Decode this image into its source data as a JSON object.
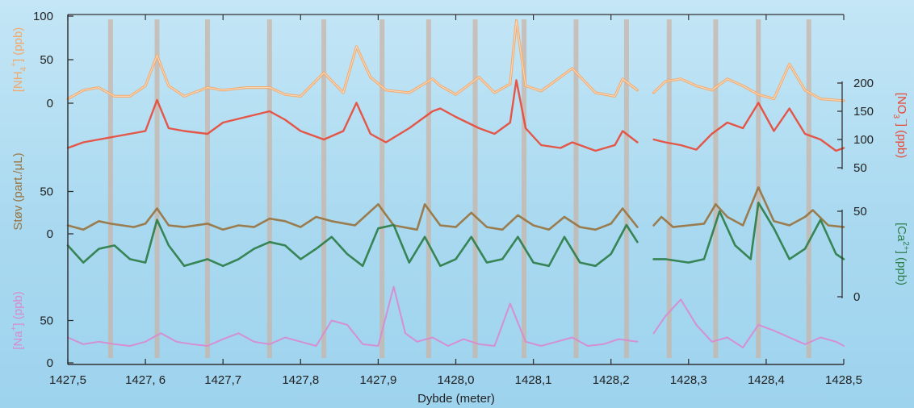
{
  "chart_data": {
    "type": "line",
    "xlabel": "Dybde (meter)",
    "xlim": [
      1427.5,
      1428.5
    ],
    "x_ticks": [
      "1427,5",
      "1427, 6",
      "1427,7",
      "1427,8",
      "1427,9",
      "1428,0",
      "1428,1",
      "1428,2",
      "1428,3",
      "1428,4",
      "1428,5"
    ],
    "x_tick_values": [
      1427.5,
      1427.6,
      1427.7,
      1427.8,
      1427.9,
      1428.0,
      1428.1,
      1428.2,
      1428.3,
      1428.4,
      1428.5
    ],
    "gaps": [
      [
        1428.234,
        1428.255
      ]
    ],
    "markers": [
      1427.555,
      1427.615,
      1427.68,
      1427.76,
      1427.83,
      1427.905,
      1427.965,
      1428.025,
      1428.088,
      1428.155,
      1428.22,
      1428.275,
      1428.335,
      1428.39,
      1428.455
    ],
    "colors": {
      "nh4": "#f3a86a",
      "no3": "#e84a3a",
      "dust": "#9a7440",
      "ca": "#2e7d48",
      "na": "#d88ad0",
      "marker": "#c8b4a8",
      "axis": "#333333"
    },
    "series": [
      {
        "name": "NH4",
        "label_main": "[NH",
        "label_sub": "4",
        "label_sup": "+",
        "label_end": "] (ppb)",
        "side": "left",
        "ylim": [
          0,
          100
        ],
        "ticks": [
          "0",
          "50",
          "100"
        ],
        "tick_values": [
          0,
          50,
          100
        ],
        "x": [
          1427.5,
          1427.52,
          1427.54,
          1427.56,
          1427.58,
          1427.6,
          1427.615,
          1427.63,
          1427.65,
          1427.68,
          1427.7,
          1427.73,
          1427.76,
          1427.78,
          1427.8,
          1427.83,
          1427.855,
          1427.872,
          1427.89,
          1427.91,
          1427.94,
          1427.97,
          1427.98,
          1428.0,
          1428.03,
          1428.05,
          1428.07,
          1428.078,
          1428.09,
          1428.11,
          1428.135,
          1428.15,
          1428.18,
          1428.205,
          1428.215,
          1428.234
        ],
        "y": [
          5,
          15,
          18,
          8,
          8,
          20,
          55,
          20,
          8,
          18,
          15,
          18,
          18,
          10,
          8,
          35,
          12,
          65,
          30,
          15,
          12,
          28,
          20,
          10,
          30,
          12,
          22,
          95,
          20,
          14,
          30,
          40,
          12,
          8,
          28,
          15
        ]
      },
      {
        "name": "NH4b",
        "label_main": "",
        "side": "none",
        "ylim": [
          0,
          100
        ],
        "x": [
          1428.255,
          1428.27,
          1428.29,
          1428.31,
          1428.33,
          1428.35,
          1428.37,
          1428.39,
          1428.41,
          1428.43,
          1428.45,
          1428.47,
          1428.5
        ],
        "y": [
          12,
          25,
          28,
          20,
          15,
          28,
          20,
          10,
          5,
          45,
          15,
          5,
          3
        ]
      },
      {
        "name": "NO3",
        "label_main": "[NO",
        "label_sub": "3",
        "label_sup": "−",
        "label_end": "] (ppb)",
        "side": "right",
        "ylim": [
          50,
          200
        ],
        "ticks": [
          "50",
          "100",
          "150",
          "200"
        ],
        "tick_values": [
          50,
          100,
          150,
          200
        ],
        "x": [
          1427.5,
          1427.52,
          1427.54,
          1427.56,
          1427.58,
          1427.6,
          1427.615,
          1427.63,
          1427.65,
          1427.68,
          1427.7,
          1427.73,
          1427.76,
          1427.78,
          1427.8,
          1427.83,
          1427.855,
          1427.872,
          1427.89,
          1427.91,
          1427.94,
          1427.97,
          1427.98,
          1428.0,
          1428.03,
          1428.05,
          1428.07,
          1428.078,
          1428.09,
          1428.11,
          1428.135,
          1428.15,
          1428.18,
          1428.205,
          1428.215,
          1428.234
        ],
        "y": [
          85,
          95,
          100,
          105,
          110,
          115,
          170,
          120,
          115,
          110,
          130,
          140,
          150,
          135,
          115,
          100,
          115,
          165,
          110,
          95,
          120,
          150,
          155,
          140,
          120,
          110,
          130,
          205,
          120,
          90,
          85,
          95,
          80,
          90,
          115,
          95
        ]
      },
      {
        "name": "NO3b",
        "label_main": "",
        "side": "none",
        "ylim": [
          50,
          200
        ],
        "x": [
          1428.255,
          1428.27,
          1428.29,
          1428.31,
          1428.33,
          1428.35,
          1428.37,
          1428.39,
          1428.41,
          1428.43,
          1428.45,
          1428.47,
          1428.49,
          1428.5
        ],
        "y": [
          100,
          95,
          90,
          82,
          110,
          130,
          120,
          165,
          115,
          155,
          110,
          100,
          80,
          85
        ]
      },
      {
        "name": "Dust",
        "label_main": "Støv (part./μL)",
        "side": "left",
        "ylim": [
          0,
          100
        ],
        "ticks": [
          "0",
          "50"
        ],
        "tick_values": [
          0,
          50
        ],
        "x": [
          1427.5,
          1427.52,
          1427.54,
          1427.555,
          1427.57,
          1427.585,
          1427.6,
          1427.615,
          1427.63,
          1427.65,
          1427.68,
          1427.7,
          1427.72,
          1427.74,
          1427.76,
          1427.78,
          1427.8,
          1427.82,
          1427.84,
          1427.87,
          1427.9,
          1427.92,
          1427.95,
          1427.96,
          1427.98,
          1428.0,
          1428.02,
          1428.04,
          1428.06,
          1428.08,
          1428.1,
          1428.12,
          1428.14,
          1428.16,
          1428.18,
          1428.2,
          1428.215,
          1428.234
        ],
        "y": [
          10,
          5,
          15,
          12,
          10,
          8,
          12,
          30,
          10,
          8,
          12,
          5,
          10,
          8,
          18,
          15,
          8,
          20,
          15,
          10,
          35,
          10,
          5,
          35,
          10,
          8,
          25,
          8,
          5,
          22,
          10,
          5,
          20,
          8,
          5,
          12,
          30,
          8
        ]
      },
      {
        "name": "Dustb",
        "label_main": "",
        "side": "none",
        "ylim": [
          0,
          100
        ],
        "x": [
          1428.255,
          1428.265,
          1428.28,
          1428.3,
          1428.32,
          1428.335,
          1428.35,
          1428.37,
          1428.39,
          1428.41,
          1428.43,
          1428.45,
          1428.46,
          1428.48,
          1428.5
        ],
        "y": [
          10,
          20,
          8,
          10,
          12,
          35,
          20,
          10,
          55,
          15,
          10,
          20,
          28,
          10,
          8
        ]
      },
      {
        "name": "Ca",
        "label_main": "[Ca",
        "label_sup": "2+",
        "label_end": "] (ppb)",
        "side": "right",
        "ylim": [
          0,
          50
        ],
        "ticks": [
          "0",
          "50"
        ],
        "tick_values": [
          0,
          50
        ],
        "x": [
          1427.5,
          1427.52,
          1427.54,
          1427.56,
          1427.58,
          1427.6,
          1427.615,
          1427.63,
          1427.65,
          1427.68,
          1427.7,
          1427.72,
          1427.74,
          1427.76,
          1427.78,
          1427.8,
          1427.82,
          1427.84,
          1427.86,
          1427.88,
          1427.9,
          1427.92,
          1427.94,
          1427.96,
          1427.98,
          1428.0,
          1428.02,
          1428.04,
          1428.06,
          1428.08,
          1428.1,
          1428.12,
          1428.14,
          1428.16,
          1428.18,
          1428.2,
          1428.22,
          1428.234
        ],
        "y": [
          30,
          20,
          28,
          30,
          22,
          20,
          45,
          30,
          18,
          22,
          18,
          22,
          28,
          32,
          30,
          22,
          28,
          35,
          25,
          18,
          40,
          42,
          20,
          35,
          18,
          22,
          35,
          20,
          22,
          35,
          20,
          18,
          35,
          20,
          18,
          25,
          42,
          32
        ]
      },
      {
        "name": "Cab",
        "label_main": "",
        "side": "none",
        "ylim": [
          0,
          50
        ],
        "x": [
          1428.255,
          1428.27,
          1428.3,
          1428.32,
          1428.34,
          1428.36,
          1428.38,
          1428.39,
          1428.41,
          1428.43,
          1428.45,
          1428.47,
          1428.49,
          1428.5
        ],
        "y": [
          22,
          22,
          20,
          22,
          50,
          30,
          22,
          55,
          40,
          22,
          28,
          45,
          25,
          22
        ]
      },
      {
        "name": "Na",
        "label_main": "[Na",
        "label_sup": "+",
        "label_end": "] (ppb)",
        "side": "left",
        "ylim": [
          0,
          100
        ],
        "ticks": [
          "0",
          "50"
        ],
        "tick_values": [
          0,
          50
        ],
        "x": [
          1427.5,
          1427.52,
          1427.54,
          1427.56,
          1427.58,
          1427.6,
          1427.62,
          1427.64,
          1427.66,
          1427.68,
          1427.7,
          1427.72,
          1427.74,
          1427.76,
          1427.78,
          1427.8,
          1427.82,
          1427.84,
          1427.86,
          1427.88,
          1427.9,
          1427.92,
          1427.935,
          1427.95,
          1427.97,
          1427.99,
          1428.01,
          1428.03,
          1428.05,
          1428.07,
          1428.09,
          1428.11,
          1428.13,
          1428.15,
          1428.17,
          1428.19,
          1428.21,
          1428.234
        ],
        "y": [
          30,
          22,
          25,
          22,
          20,
          25,
          35,
          25,
          22,
          20,
          28,
          35,
          25,
          22,
          30,
          25,
          20,
          50,
          45,
          22,
          20,
          90,
          35,
          25,
          30,
          20,
          28,
          22,
          20,
          70,
          25,
          20,
          25,
          30,
          20,
          22,
          28,
          25
        ]
      },
      {
        "name": "Nab",
        "label_main": "",
        "side": "none",
        "ylim": [
          0,
          100
        ],
        "x": [
          1428.255,
          1428.27,
          1428.29,
          1428.31,
          1428.33,
          1428.35,
          1428.37,
          1428.39,
          1428.41,
          1428.43,
          1428.45,
          1428.47,
          1428.49,
          1428.5
        ],
        "y": [
          35,
          55,
          75,
          45,
          25,
          30,
          18,
          45,
          38,
          30,
          22,
          30,
          25,
          20
        ]
      }
    ]
  }
}
